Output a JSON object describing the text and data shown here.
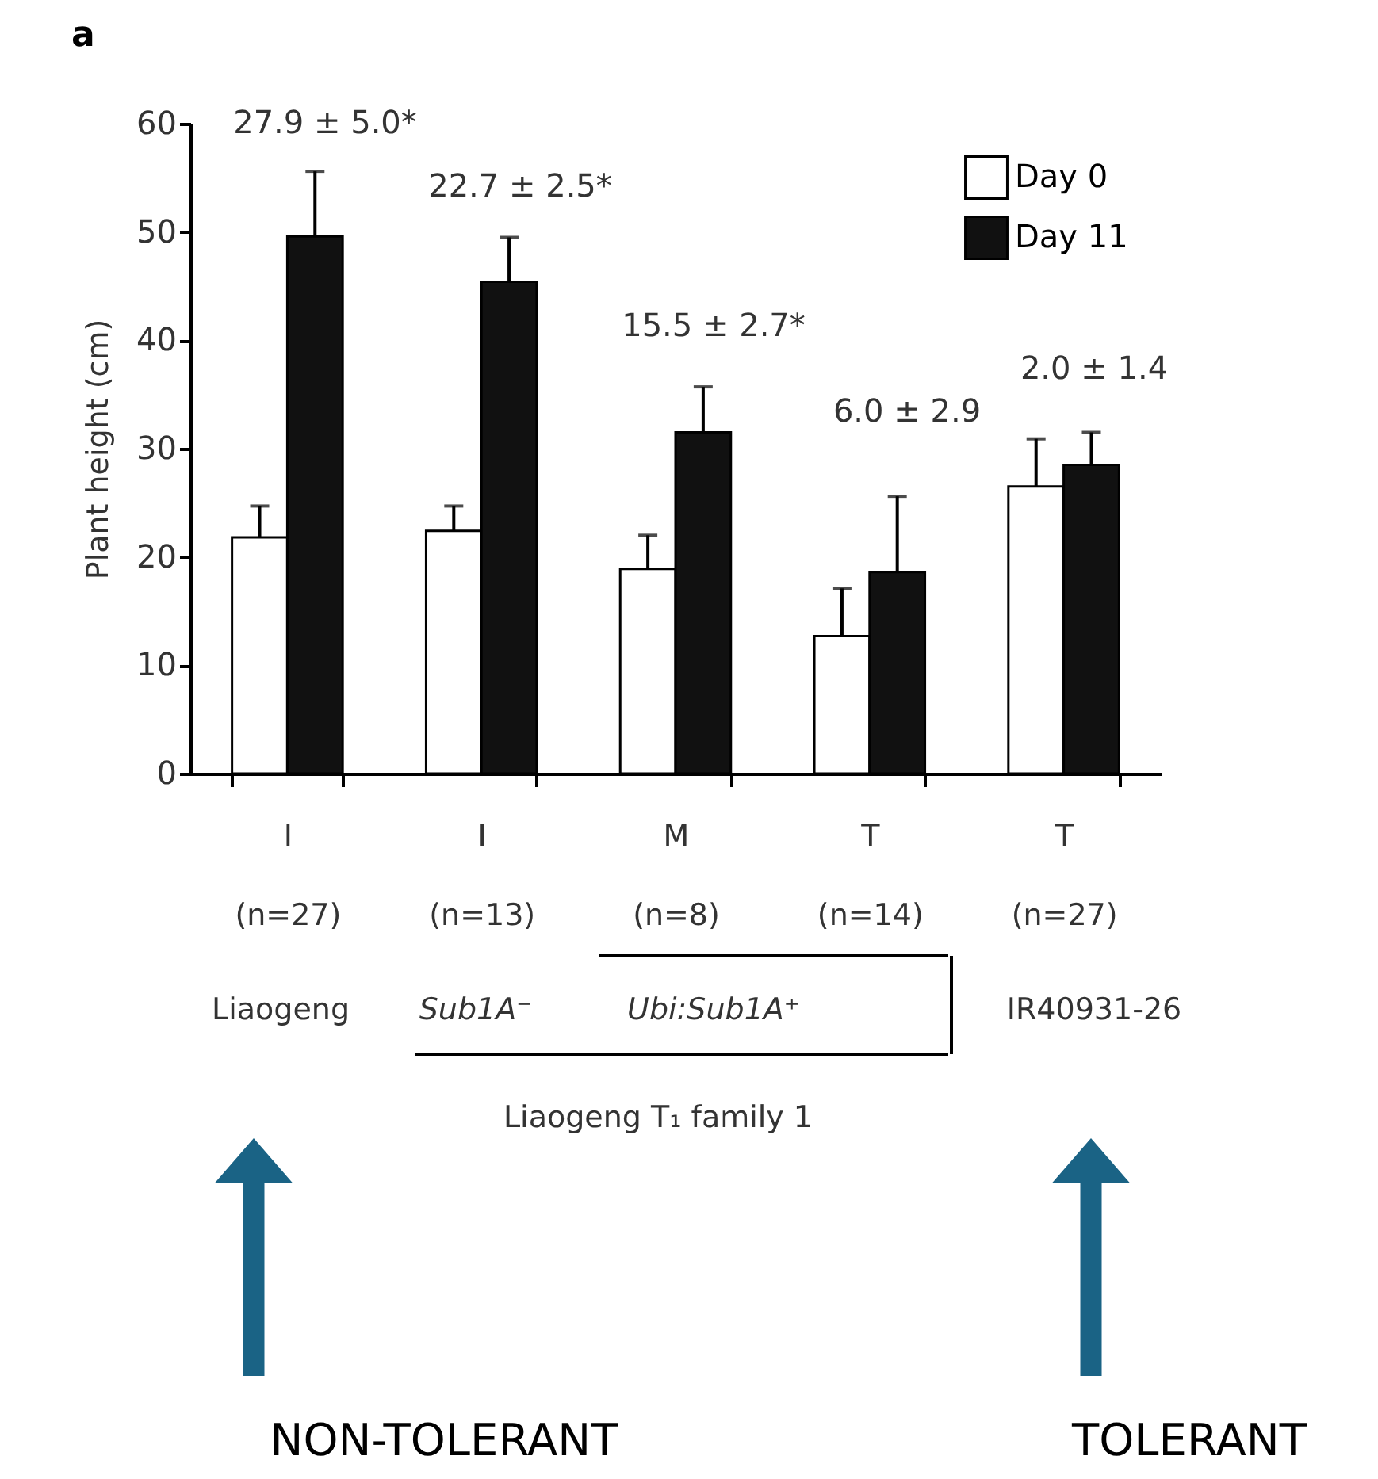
{
  "chart_data": {
    "type": "bar",
    "categories": [
      "I (n=27)",
      "I (n=13)",
      "M (n=8)",
      "T (n=14)",
      "T (n=27)"
    ],
    "series": [
      {
        "name": "Day 0",
        "color": "#ffffff",
        "values": [
          21.8,
          22.4,
          18.9,
          12.7,
          26.5
        ],
        "errors": [
          2.9,
          2.3,
          3.1,
          4.4,
          4.4
        ]
      },
      {
        "name": "Day 11",
        "color": "#111111",
        "values": [
          49.6,
          45.4,
          31.5,
          18.6,
          28.5
        ],
        "errors": [
          6.0,
          4.1,
          4.2,
          7.0,
          3.0
        ]
      }
    ],
    "ylabel": "Plant height (cm)",
    "ylim": [
      0,
      60
    ],
    "yticks": [
      0,
      10,
      20,
      30,
      40,
      50,
      60
    ],
    "grid": false,
    "legend": "top right",
    "annotations": [
      "27.9 ± 5.0*",
      "22.7 ± 2.5*",
      "15.5 ± 2.7*",
      "6.0 ± 2.9",
      "2.0 ± 1.4",
      "a",
      "Liaogeng",
      "Sub1A⁻",
      "Ubi:Sub1A⁺",
      "IR40931-26",
      "Liaogeng T₁ family 1",
      "NON-TOLERANT",
      "TOLERANT"
    ]
  }
}
